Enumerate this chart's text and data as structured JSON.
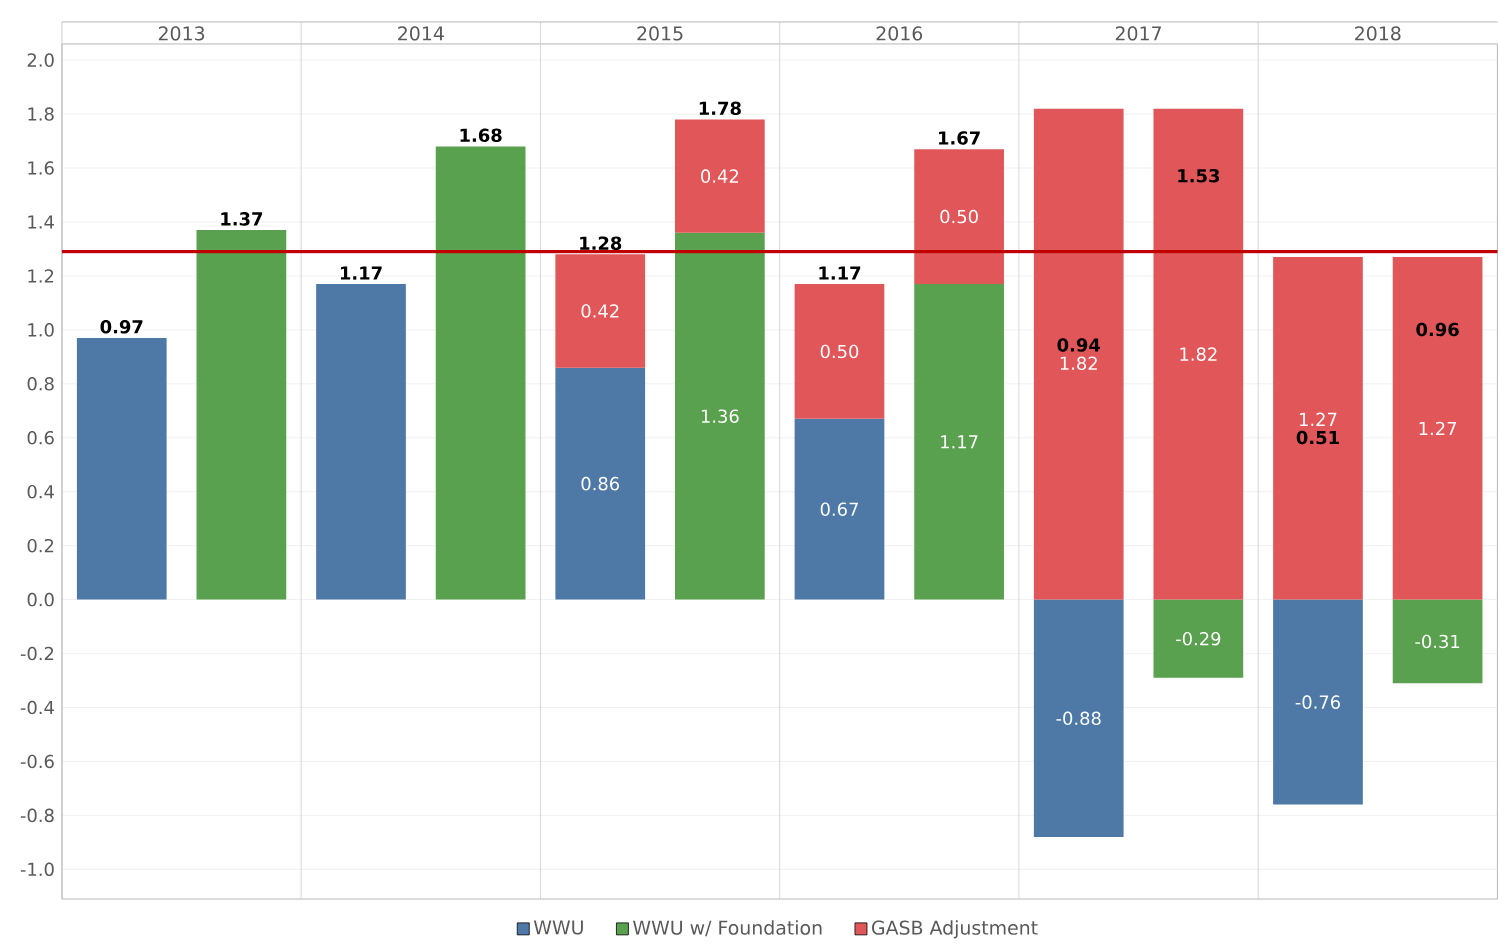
{
  "chart_data": {
    "type": "bar",
    "stacked": true,
    "categories": [
      "2013",
      null,
      "2014",
      null,
      "2015",
      null,
      "2016",
      null,
      "2017",
      null,
      "2018",
      null
    ],
    "series": [
      {
        "name": "WWU",
        "color": "#4e79a7",
        "values": [
          0.97,
          null,
          1.17,
          null,
          0.86,
          null,
          0.67,
          null,
          -0.88,
          null,
          -0.76,
          null
        ],
        "value_labels": [
          null,
          null,
          null,
          null,
          "0.86",
          null,
          "0.67",
          null,
          "-0.88",
          null,
          "-0.76",
          null
        ]
      },
      {
        "name": "WWU w/ Foundation",
        "color": "#59a14f",
        "values": [
          null,
          1.37,
          null,
          1.68,
          null,
          1.36,
          null,
          1.17,
          null,
          -0.29,
          null,
          -0.31
        ],
        "value_labels": [
          null,
          null,
          null,
          null,
          null,
          "1.36",
          null,
          "1.17",
          null,
          "-0.29",
          null,
          "-0.31"
        ]
      },
      {
        "name": "GASB Adjustment",
        "color": "#e15759",
        "values": [
          null,
          null,
          null,
          null,
          0.42,
          0.42,
          0.5,
          0.5,
          1.82,
          1.82,
          1.27,
          1.27
        ],
        "value_labels": [
          null,
          null,
          null,
          null,
          "0.42",
          "0.42",
          "0.50",
          "0.50",
          "1.82",
          "1.82",
          "1.27",
          "1.27"
        ]
      }
    ],
    "totals": [
      "0.97",
      "1.37",
      "1.17",
      "1.68",
      "1.28",
      "1.78",
      "1.17",
      "1.67",
      "0.94",
      "1.53",
      "0.51",
      "0.96"
    ],
    "ylim": [
      -1.11,
      2.06
    ],
    "yticks": [
      {
        "value": -1.0,
        "label": "-1.0"
      },
      {
        "value": -0.8,
        "label": "-0.8"
      },
      {
        "value": -0.6,
        "label": "-0.6"
      },
      {
        "value": -0.4,
        "label": "-0.4"
      },
      {
        "value": -0.2,
        "label": "-0.2"
      },
      {
        "value": 0,
        "label": "0.0"
      },
      {
        "value": 0.2,
        "label": "0.2"
      },
      {
        "value": 0.4,
        "label": "0.4"
      },
      {
        "value": 0.6,
        "label": "0.6"
      },
      {
        "value": 0.8,
        "label": "0.8"
      },
      {
        "value": 1.0,
        "label": "1.0"
      },
      {
        "value": 1.2,
        "label": "1.2"
      },
      {
        "value": 1.4,
        "label": "1.4"
      },
      {
        "value": 1.6,
        "label": "1.6"
      },
      {
        "value": 1.8,
        "label": "1.8"
      },
      {
        "value": 2.0,
        "label": "2.0"
      }
    ],
    "ref_lines": [
      {
        "axis": "y",
        "value": 1.29,
        "color": "#c00000"
      }
    ],
    "grid": true,
    "legend": "bottom"
  }
}
